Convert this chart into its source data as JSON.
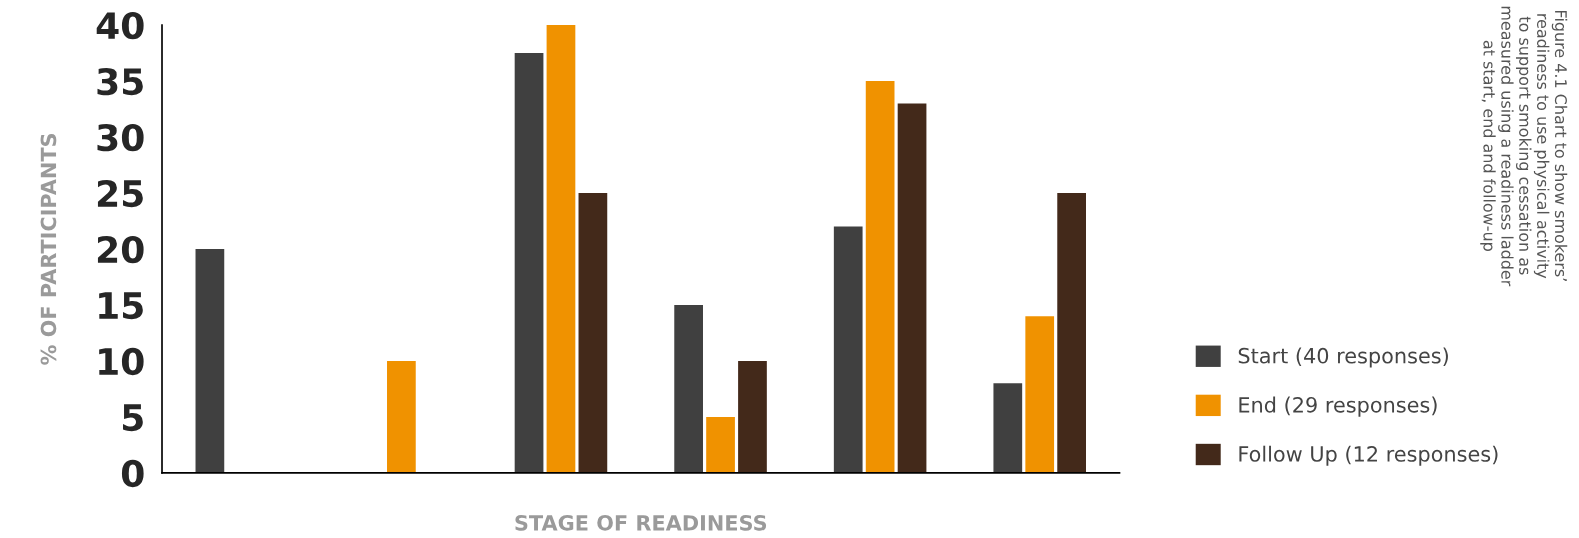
{
  "chart_data": {
    "type": "bar",
    "xlabel": "STAGE OF READINESS",
    "ylabel": "% OF PARTICIPANTS",
    "categories": [
      null,
      null,
      null,
      null,
      null,
      null
    ],
    "series": [
      {
        "name": "Start (40 responses)",
        "color": "#404040",
        "values": [
          20,
          null,
          37.5,
          15,
          22,
          8
        ]
      },
      {
        "name": "End (29 responses)",
        "color": "#f09200",
        "values": [
          null,
          10,
          40,
          5,
          35,
          14
        ]
      },
      {
        "name": "Follow Up (12 responses)",
        "color": "#43291a",
        "values": [
          null,
          null,
          25,
          10,
          33,
          25
        ]
      }
    ],
    "ylim": [
      0,
      40
    ],
    "yticks": [
      0,
      5,
      10,
      15,
      20,
      25,
      30,
      35,
      40
    ],
    "tick_labels": "y",
    "legend": "right",
    "grid": false,
    "annotations": [
      "Figure 4.1 Chart to show smokers’\nreadiness to use physical activity\nto support smoking cessation as\nmeasured using a readiness ladder\nat start, end and follow-up"
    ]
  }
}
